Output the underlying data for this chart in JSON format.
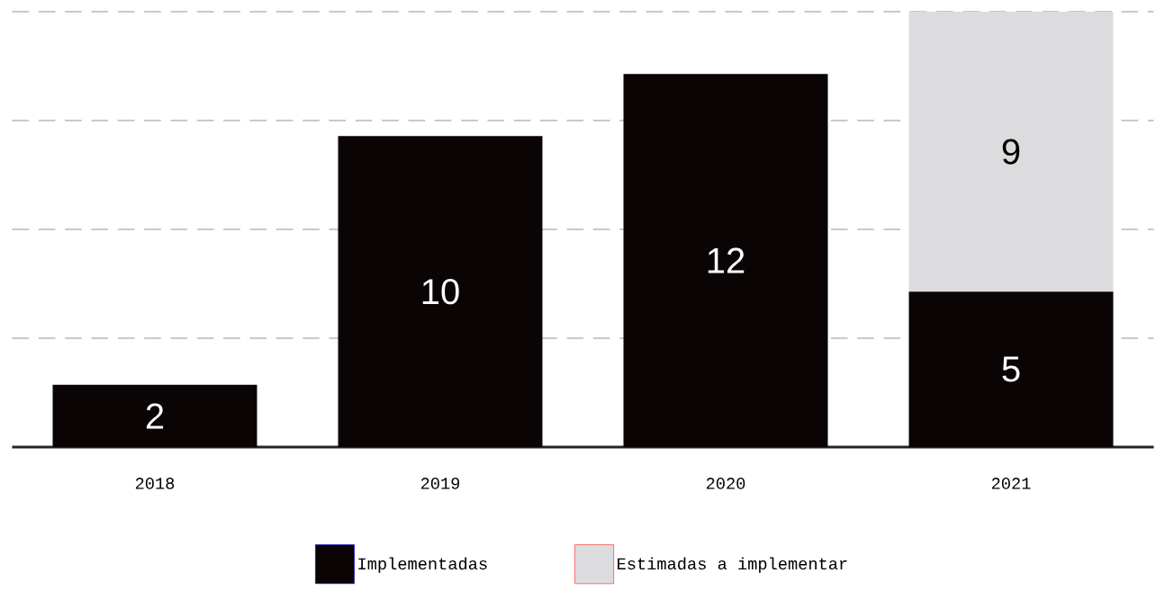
{
  "chart_data": {
    "type": "bar",
    "stacked": true,
    "data_labels": true,
    "categories": [
      "2018",
      "2019",
      "2020",
      "2021"
    ],
    "series": [
      {
        "name": "Implementadas",
        "color": "#0a0405",
        "values": [
          2,
          10,
          12,
          5
        ]
      },
      {
        "name": "Estimadas a implementar",
        "color": "#dcdcde",
        "values": [
          null,
          null,
          null,
          9
        ]
      }
    ],
    "ylim": [
      0,
      14
    ],
    "yticks": [
      {
        "value": 3.5,
        "label": null
      },
      {
        "value": 7,
        "label": null
      },
      {
        "value": 10.5,
        "label": null
      },
      {
        "value": 14,
        "label": null
      }
    ],
    "tick_labels": "x",
    "grid": "y",
    "legend": "bottom"
  }
}
